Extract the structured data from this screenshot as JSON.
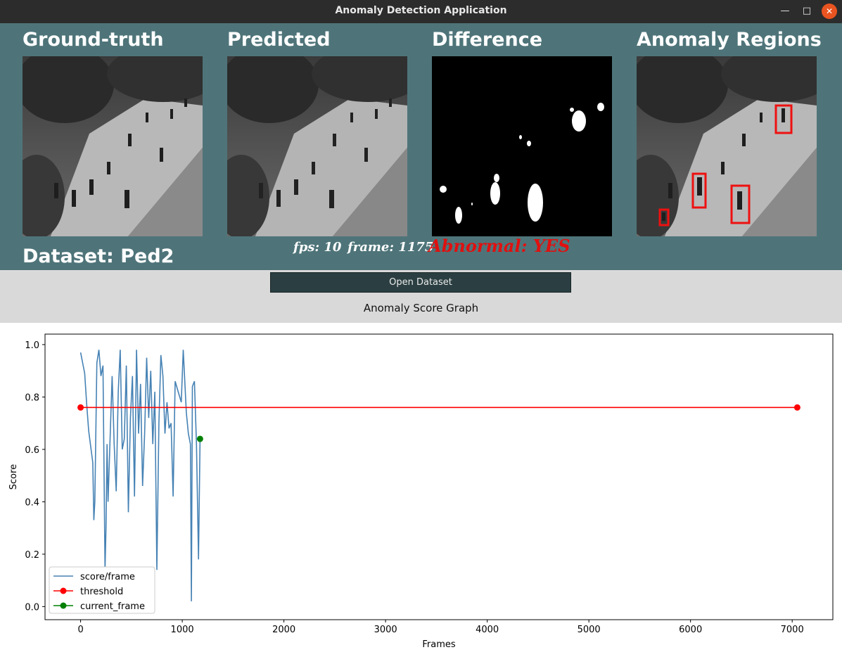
{
  "window": {
    "title": "Anomaly Detection Application"
  },
  "panels": {
    "ground_truth": "Ground-truth",
    "predicted": "Predicted",
    "difference": "Difference",
    "anomaly_regions": "Anomaly Regions"
  },
  "info": {
    "dataset": "Dataset: Ped2",
    "fps": "fps: 10",
    "frame": "frame: 1175",
    "abnormal": "Abnormal: YES"
  },
  "controls": {
    "open_dataset": "Open Dataset",
    "graph_label": "Anomaly Score Graph"
  },
  "colors": {
    "panel_bg": "#4e7479",
    "score_line": "#4682b4",
    "threshold": "#ff0000",
    "current_frame": "#008000",
    "abnormal_text": "#e01010"
  },
  "chart_data": {
    "type": "line",
    "xlabel": "Frames",
    "ylabel": "Score",
    "xlim": [
      -350,
      7400
    ],
    "ylim": [
      -0.05,
      1.04
    ],
    "xticks": [
      "0",
      "1000",
      "2000",
      "3000",
      "4000",
      "5000",
      "6000",
      "7000"
    ],
    "yticks": [
      "0.0",
      "0.2",
      "0.4",
      "0.6",
      "0.8",
      "1.0"
    ],
    "legend_position": "lower-left",
    "series": [
      {
        "name": "score/frame",
        "style": "line",
        "x": [
          0,
          20,
          40,
          60,
          80,
          100,
          120,
          130,
          140,
          160,
          180,
          200,
          220,
          240,
          250,
          260,
          270,
          290,
          310,
          330,
          350,
          370,
          390,
          410,
          430,
          450,
          470,
          490,
          510,
          530,
          550,
          570,
          590,
          610,
          630,
          650,
          670,
          690,
          710,
          730,
          750,
          770,
          790,
          810,
          830,
          850,
          870,
          890,
          910,
          930,
          960,
          990,
          1010,
          1040,
          1060,
          1080,
          1090,
          1100,
          1120,
          1140,
          1160,
          1175
        ],
        "y": [
          0.97,
          0.93,
          0.89,
          0.77,
          0.67,
          0.61,
          0.55,
          0.33,
          0.4,
          0.93,
          0.98,
          0.88,
          0.92,
          0.14,
          0.3,
          0.62,
          0.4,
          0.64,
          0.88,
          0.62,
          0.44,
          0.82,
          0.98,
          0.6,
          0.64,
          0.92,
          0.36,
          0.72,
          0.88,
          0.42,
          0.98,
          0.66,
          0.85,
          0.46,
          0.66,
          0.95,
          0.72,
          0.9,
          0.62,
          0.82,
          0.14,
          0.7,
          0.96,
          0.88,
          0.66,
          0.78,
          0.68,
          0.7,
          0.42,
          0.86,
          0.82,
          0.78,
          0.98,
          0.74,
          0.66,
          0.62,
          0.02,
          0.84,
          0.86,
          0.62,
          0.18,
          0.64
        ]
      },
      {
        "name": "threshold",
        "style": "line-marker",
        "x": [
          0,
          7050
        ],
        "y": [
          0.76,
          0.76
        ]
      },
      {
        "name": "current_frame",
        "style": "marker",
        "x": [
          1175
        ],
        "y": [
          0.64
        ]
      }
    ]
  }
}
